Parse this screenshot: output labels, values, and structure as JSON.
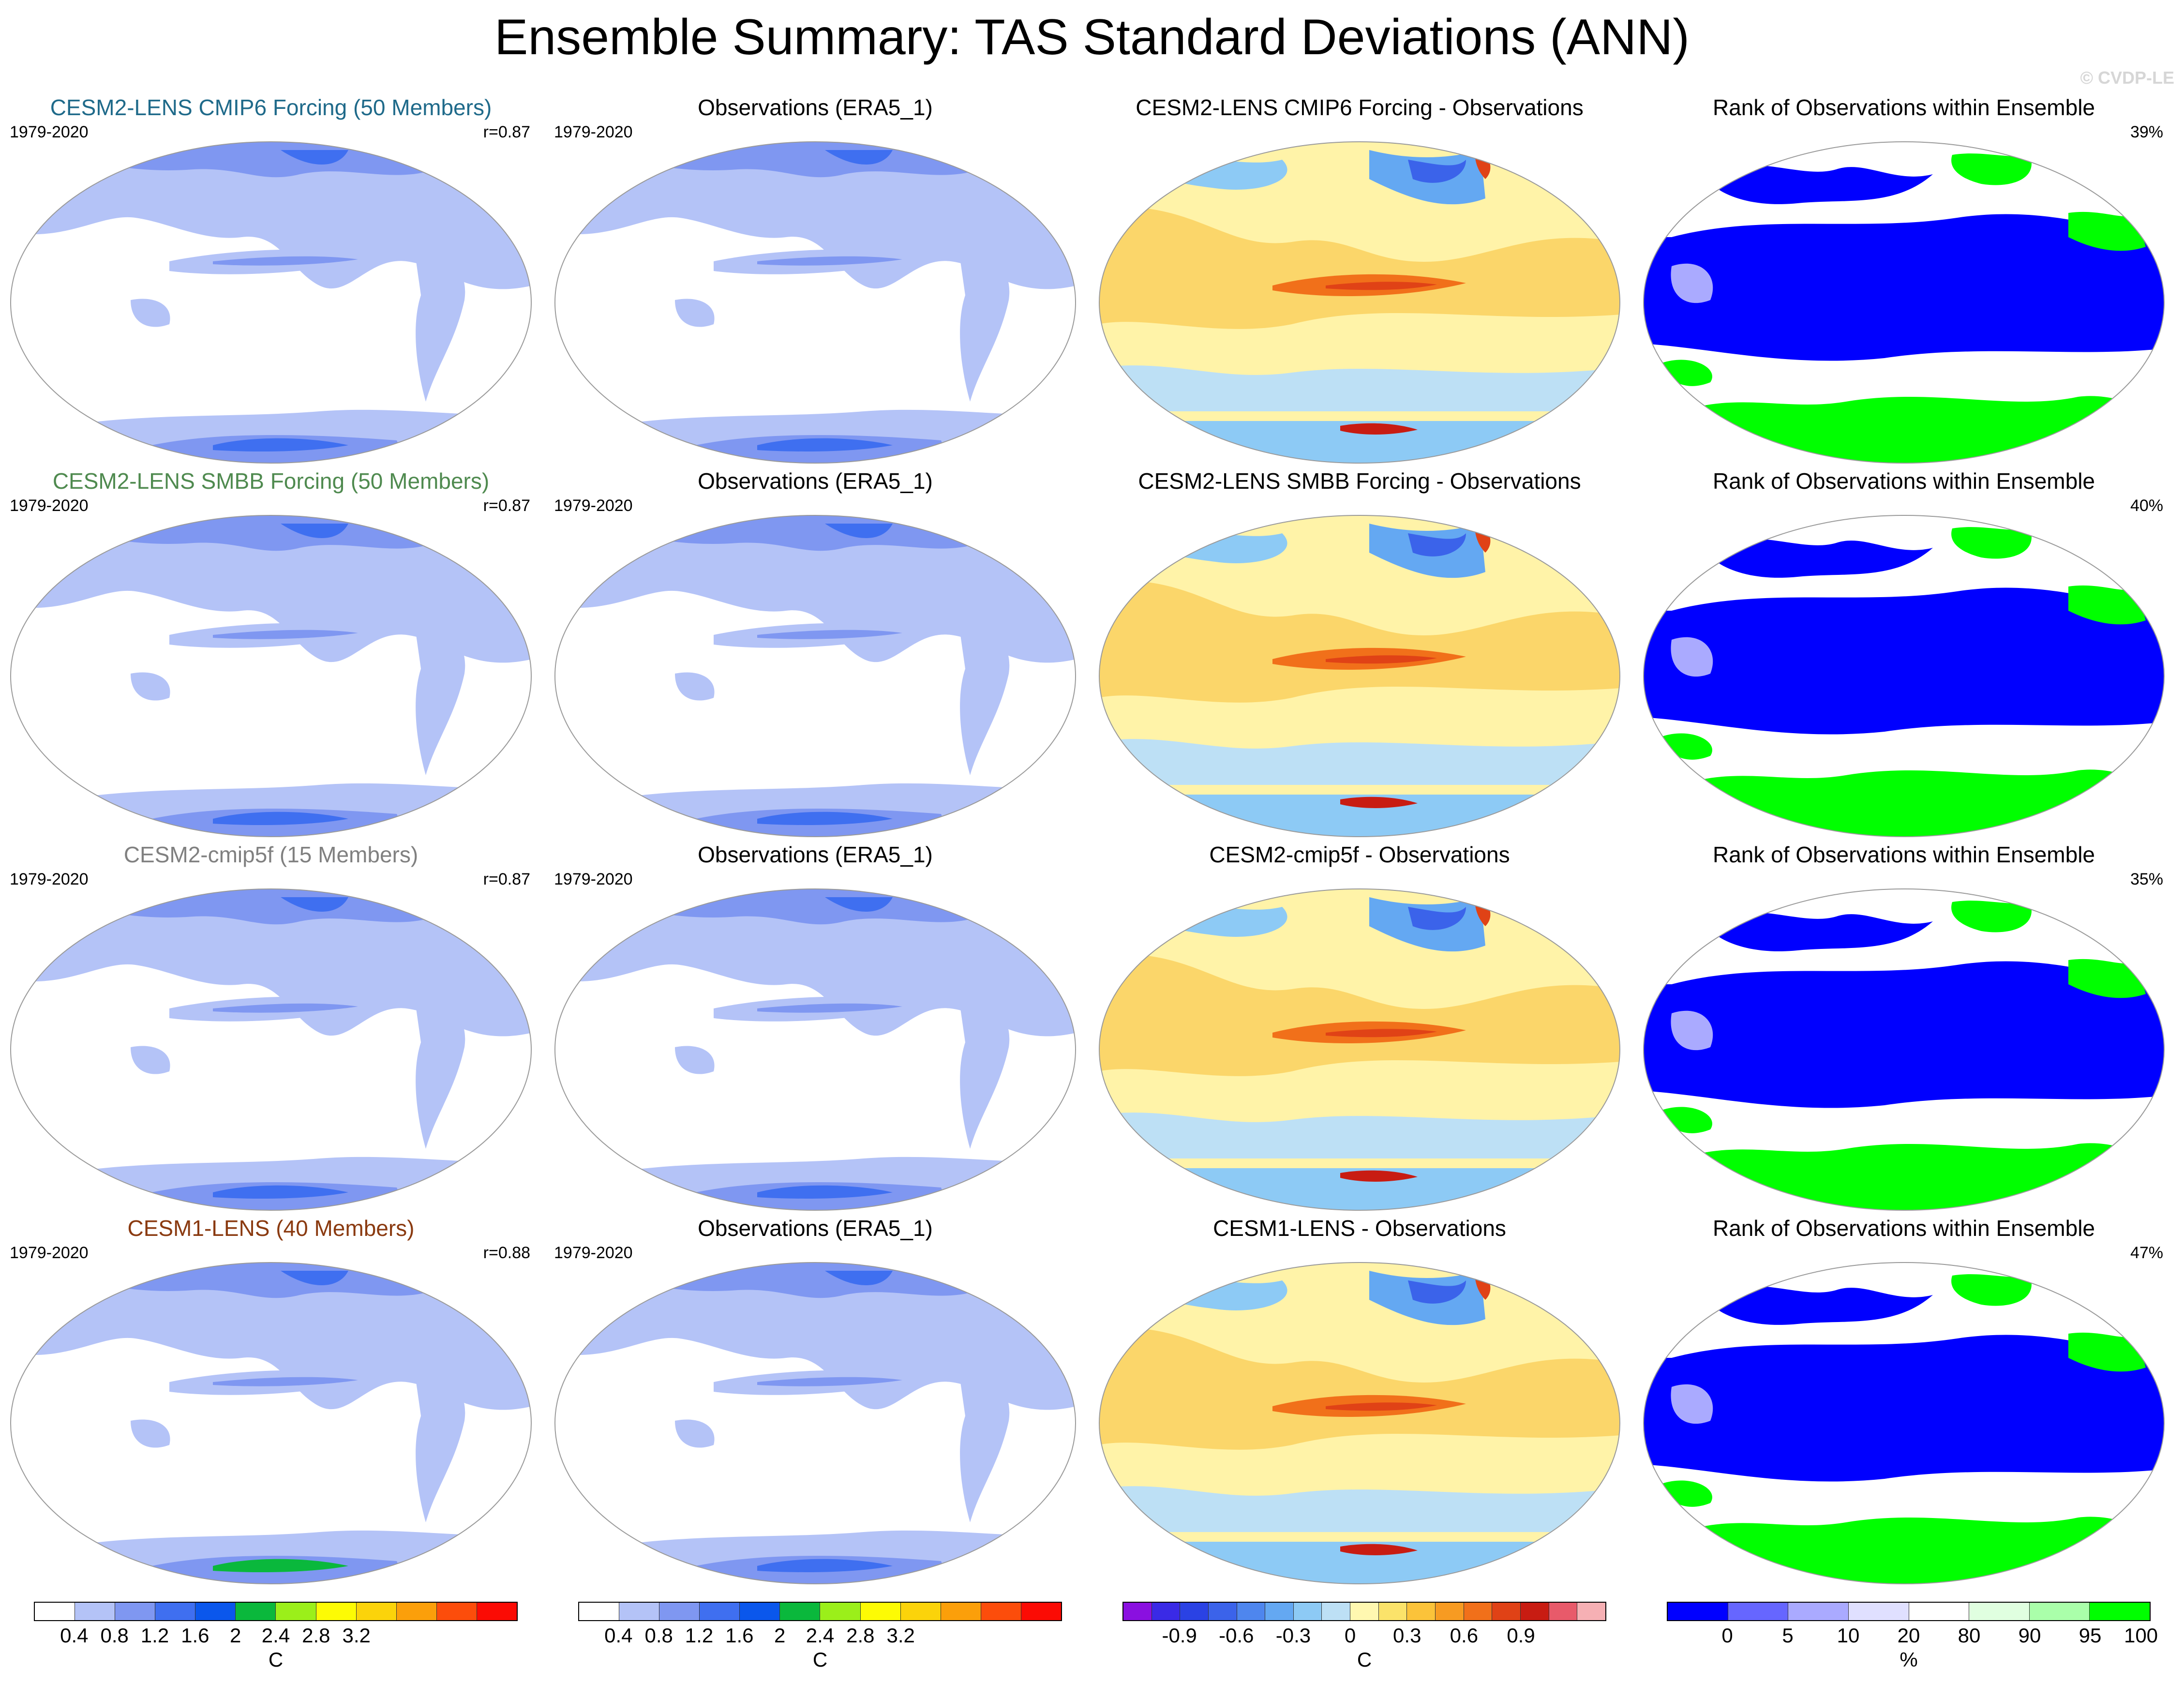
{
  "page": {
    "title": "Ensemble Summary: TAS Standard Deviations (ANN)",
    "watermark": "© CVDP-LE"
  },
  "chart_data": [
    {
      "type": "heatmap",
      "row": 0,
      "col": 0,
      "kind": "std",
      "title": "CESM2-LENS CMIP6 Forcing (50 Members)",
      "title_color": "#1f6a8a",
      "years": "1979-2020",
      "stat": "r=0.87"
    },
    {
      "type": "heatmap",
      "row": 0,
      "col": 1,
      "kind": "obs",
      "title": "Observations (ERA5_1)",
      "title_color": "#000000",
      "years": "1979-2020",
      "stat": ""
    },
    {
      "type": "heatmap",
      "row": 0,
      "col": 2,
      "kind": "diff",
      "title": "CESM2-LENS CMIP6 Forcing - Observations",
      "title_color": "#000000",
      "years": "",
      "stat": ""
    },
    {
      "type": "heatmap",
      "row": 0,
      "col": 3,
      "kind": "rank",
      "title": "Rank of Observations within Ensemble",
      "title_color": "#000000",
      "years": "",
      "stat": "39%"
    },
    {
      "type": "heatmap",
      "row": 1,
      "col": 0,
      "kind": "std",
      "title": "CESM2-LENS SMBB Forcing (50 Members)",
      "title_color": "#4f8a4f",
      "years": "1979-2020",
      "stat": "r=0.87"
    },
    {
      "type": "heatmap",
      "row": 1,
      "col": 1,
      "kind": "obs",
      "title": "Observations (ERA5_1)",
      "title_color": "#000000",
      "years": "1979-2020",
      "stat": ""
    },
    {
      "type": "heatmap",
      "row": 1,
      "col": 2,
      "kind": "diff",
      "title": "CESM2-LENS SMBB Forcing - Observations",
      "title_color": "#000000",
      "years": "",
      "stat": ""
    },
    {
      "type": "heatmap",
      "row": 1,
      "col": 3,
      "kind": "rank",
      "title": "Rank of Observations within Ensemble",
      "title_color": "#000000",
      "years": "",
      "stat": "40%"
    },
    {
      "type": "heatmap",
      "row": 2,
      "col": 0,
      "kind": "std",
      "title": "CESM2-cmip5f (15 Members)",
      "title_color": "#808080",
      "years": "1979-2020",
      "stat": "r=0.87"
    },
    {
      "type": "heatmap",
      "row": 2,
      "col": 1,
      "kind": "obs",
      "title": "Observations (ERA5_1)",
      "title_color": "#000000",
      "years": "1979-2020",
      "stat": ""
    },
    {
      "type": "heatmap",
      "row": 2,
      "col": 2,
      "kind": "diff",
      "title": "CESM2-cmip5f - Observations",
      "title_color": "#000000",
      "years": "",
      "stat": ""
    },
    {
      "type": "heatmap",
      "row": 2,
      "col": 3,
      "kind": "rank",
      "title": "Rank of Observations within Ensemble",
      "title_color": "#000000",
      "years": "",
      "stat": "35%"
    },
    {
      "type": "heatmap",
      "row": 3,
      "col": 0,
      "kind": "std",
      "title": "CESM1-LENS (40 Members)",
      "title_color": "#8a3a10",
      "years": "1979-2020",
      "stat": "r=0.88"
    },
    {
      "type": "heatmap",
      "row": 3,
      "col": 1,
      "kind": "obs",
      "title": "Observations (ERA5_1)",
      "title_color": "#000000",
      "years": "1979-2020",
      "stat": ""
    },
    {
      "type": "heatmap",
      "row": 3,
      "col": 2,
      "kind": "diff",
      "title": "CESM1-LENS - Observations",
      "title_color": "#000000",
      "years": "",
      "stat": ""
    },
    {
      "type": "heatmap",
      "row": 3,
      "col": 3,
      "kind": "rank",
      "title": "Rank of Observations within Ensemble",
      "title_color": "#000000",
      "years": "",
      "stat": "47%"
    }
  ],
  "colorbars": [
    {
      "name": "std",
      "unit": "C",
      "colors": [
        "#ffffff",
        "#b4c3f7",
        "#7f97f1",
        "#3f6ff0",
        "#0a57ec",
        "#0ab83c",
        "#9bef1a",
        "#fdfb04",
        "#fbd30a",
        "#fb9f0a",
        "#fc4d0b",
        "#fb0b04"
      ],
      "ticks": [
        "0.4",
        "0.8",
        "1.2",
        "1.6",
        "2",
        "2.4",
        "2.8",
        "3.2"
      ]
    },
    {
      "name": "obs",
      "unit": "C",
      "colors": [
        "#ffffff",
        "#b4c3f7",
        "#7f97f1",
        "#3f6ff0",
        "#0a57ec",
        "#0ab83c",
        "#9bef1a",
        "#fdfb04",
        "#fbd30a",
        "#fb9f0a",
        "#fc4d0b",
        "#fb0b04"
      ],
      "ticks": [
        "0.4",
        "0.8",
        "1.2",
        "1.6",
        "2",
        "2.4",
        "2.8",
        "3.2"
      ]
    },
    {
      "name": "diff",
      "unit": "C",
      "colors": [
        "#8a10e0",
        "#3a2ae6",
        "#2a42e4",
        "#3b63ea",
        "#4e86ee",
        "#64a8f2",
        "#8dcaf5",
        "#bde0f5",
        "#fff8b0",
        "#fbe36a",
        "#fbc33a",
        "#f79b22",
        "#f1701a",
        "#e04216",
        "#c81c12",
        "#e85a6a",
        "#f6b0b4"
      ],
      "ticks": [
        "-0.9",
        "-0.6",
        "-0.3",
        "0",
        "0.3",
        "0.6",
        "0.9"
      ]
    },
    {
      "name": "rank",
      "unit": "%",
      "colors": [
        "#0000ff",
        "#6666ff",
        "#aaaaff",
        "#e0e0ff",
        "#ffffff",
        "#e0ffe0",
        "#aaffaa",
        "#00ff00"
      ],
      "ticks": [
        "0",
        "5",
        "10",
        "20",
        "80",
        "90",
        "95",
        "100"
      ]
    }
  ]
}
